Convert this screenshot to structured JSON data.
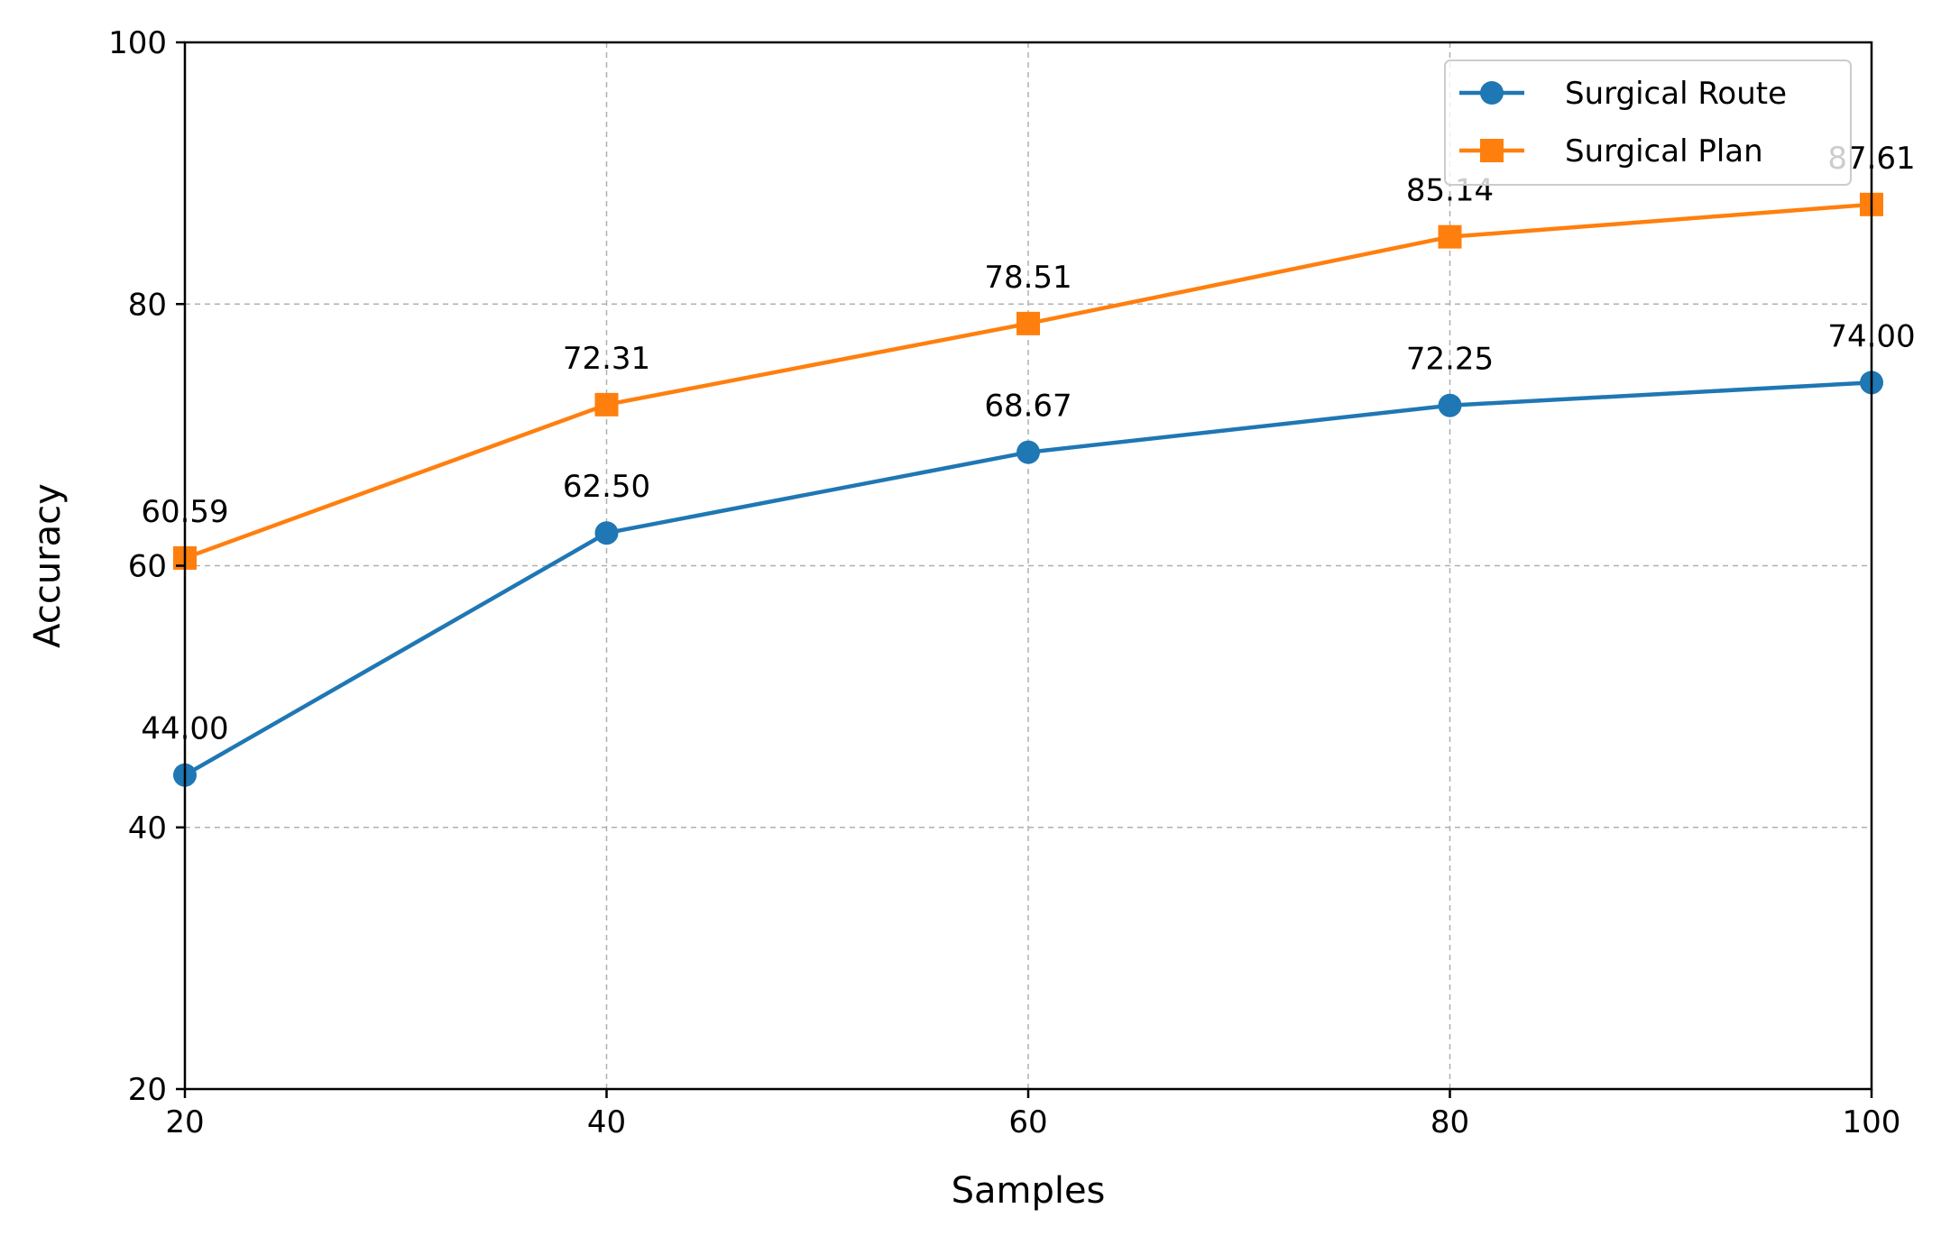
{
  "chart_data": {
    "type": "line",
    "title": "",
    "xlabel": "Samples",
    "ylabel": "Accuracy",
    "x": [
      20,
      40,
      60,
      80,
      100
    ],
    "xlim": [
      20,
      100
    ],
    "ylim": [
      20,
      100
    ],
    "xticks": [
      "20",
      "40",
      "60",
      "80",
      "100"
    ],
    "xtick_values": [
      20,
      40,
      60,
      80,
      100
    ],
    "yticks": [
      "20",
      "40",
      "60",
      "80",
      "100"
    ],
    "ytick_values": [
      20,
      40,
      60,
      80,
      100
    ],
    "grid": true,
    "legend_position": "top-right",
    "series": [
      {
        "name": "Surgical Route",
        "color": "#1f77b4",
        "marker": "circle",
        "values": [
          44.0,
          62.5,
          68.67,
          72.25,
          74.0
        ],
        "labels": [
          "44.00",
          "62.50",
          "68.67",
          "72.25",
          "74.00"
        ]
      },
      {
        "name": "Surgical Plan",
        "color": "#ff7f0e",
        "marker": "square",
        "values": [
          60.59,
          72.31,
          78.51,
          85.14,
          87.61
        ],
        "labels": [
          "60.59",
          "72.31",
          "78.51",
          "85.14",
          "87.61"
        ]
      }
    ]
  }
}
